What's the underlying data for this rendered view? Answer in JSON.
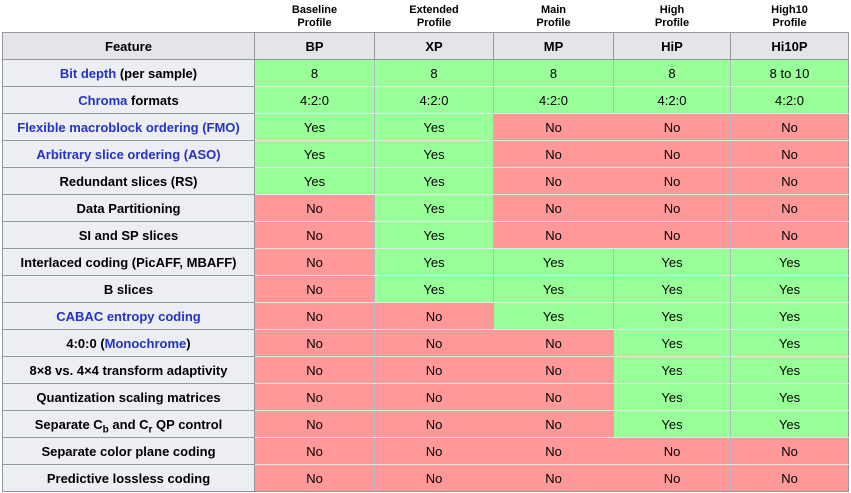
{
  "colors": {
    "yes_bg": "#99ff99",
    "no_bg": "#ff9999",
    "header_bg": "#e4e4e9",
    "label_bg": "#ededf4",
    "link_blue": "#2333c3",
    "border_gray": "#94999f"
  },
  "table": {
    "feature_header": "Feature",
    "profiles": [
      {
        "line1": "Baseline",
        "line2": "Profile",
        "abbr": "BP"
      },
      {
        "line1": "Extended",
        "line2": "Profile",
        "abbr": "XP"
      },
      {
        "line1": "Main",
        "line2": "Profile",
        "abbr": "MP"
      },
      {
        "line1": "High",
        "line2": "Profile",
        "abbr": "HiP"
      },
      {
        "line1": "High10",
        "line2": "Profile",
        "abbr": "Hi10P"
      }
    ],
    "rows": [
      {
        "label_parts": [
          {
            "text": "Bit depth",
            "link": true
          },
          {
            "text": " (per sample)"
          }
        ],
        "values": [
          "8",
          "8",
          "8",
          "8",
          "8 to 10"
        ]
      },
      {
        "label_parts": [
          {
            "text": "Chroma",
            "link": true
          },
          {
            "text": " formats"
          }
        ],
        "values": [
          "4:2:0",
          "4:2:0",
          "4:2:0",
          "4:2:0",
          "4:2:0"
        ]
      },
      {
        "label_parts": [
          {
            "text": "Flexible macroblock ordering (FMO)",
            "link": true
          }
        ],
        "values": [
          "Yes",
          "Yes",
          "No",
          "No",
          "No"
        ]
      },
      {
        "label_parts": [
          {
            "text": "Arbitrary slice ordering (ASO)",
            "link": true
          }
        ],
        "values": [
          "Yes",
          "Yes",
          "No",
          "No",
          "No"
        ]
      },
      {
        "label_parts": [
          {
            "text": "Redundant slices (RS)"
          }
        ],
        "values": [
          "Yes",
          "Yes",
          "No",
          "No",
          "No"
        ]
      },
      {
        "label_parts": [
          {
            "text": "Data Partitioning"
          }
        ],
        "values": [
          "No",
          "Yes",
          "No",
          "No",
          "No"
        ]
      },
      {
        "label_parts": [
          {
            "text": "SI and SP slices"
          }
        ],
        "values": [
          "No",
          "Yes",
          "No",
          "No",
          "No"
        ]
      },
      {
        "label_parts": [
          {
            "text": "Interlaced coding (PicAFF, MBAFF)"
          }
        ],
        "values": [
          "No",
          "Yes",
          "Yes",
          "Yes",
          "Yes"
        ]
      },
      {
        "label_parts": [
          {
            "text": "B slices"
          }
        ],
        "values": [
          "No",
          "Yes",
          "Yes",
          "Yes",
          "Yes"
        ]
      },
      {
        "label_parts": [
          {
            "text": "CABAC entropy coding",
            "link": true
          }
        ],
        "values": [
          "No",
          "No",
          "Yes",
          "Yes",
          "Yes"
        ]
      },
      {
        "label_parts": [
          {
            "text": "4:0:0 ("
          },
          {
            "text": "Monochrome",
            "link": true
          },
          {
            "text": ")"
          }
        ],
        "values": [
          "No",
          "No",
          "No",
          "Yes",
          "Yes"
        ]
      },
      {
        "label_parts": [
          {
            "text": "8×8 vs. 4×4 transform adaptivity"
          }
        ],
        "values": [
          "No",
          "No",
          "No",
          "Yes",
          "Yes"
        ]
      },
      {
        "label_parts": [
          {
            "text": "Quantization scaling matrices"
          }
        ],
        "values": [
          "No",
          "No",
          "No",
          "Yes",
          "Yes"
        ]
      },
      {
        "label_parts": [
          {
            "text": "Separate C"
          },
          {
            "text": "b",
            "sub": true
          },
          {
            "text": " and C"
          },
          {
            "text": "r",
            "sub": true
          },
          {
            "text": " QP control"
          }
        ],
        "values": [
          "No",
          "No",
          "No",
          "Yes",
          "Yes"
        ]
      },
      {
        "label_parts": [
          {
            "text": "Separate color plane coding"
          }
        ],
        "values": [
          "No",
          "No",
          "No",
          "No",
          "No"
        ]
      },
      {
        "label_parts": [
          {
            "text": "Predictive lossless coding"
          }
        ],
        "values": [
          "No",
          "No",
          "No",
          "No",
          "No"
        ]
      }
    ]
  }
}
